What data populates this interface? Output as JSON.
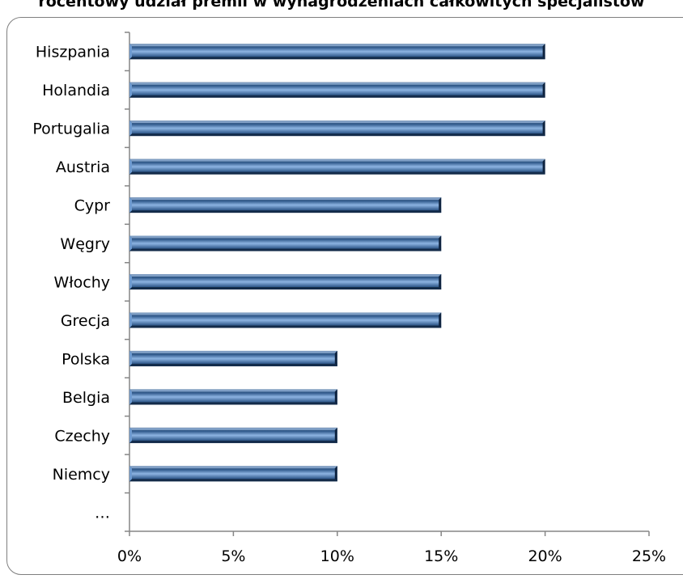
{
  "chart_data": {
    "type": "bar",
    "orientation": "horizontal",
    "title": "rocentowy udział premii w wynagrodzeniach całkowitych specjalistów",
    "categories": [
      "Hiszpania",
      "Holandia",
      "Portugalia",
      "Austria",
      "Cypr",
      "Węgry",
      "Włochy",
      "Grecja",
      "Polska",
      "Belgia",
      "Czechy",
      "Niemcy",
      "…"
    ],
    "values": [
      20,
      20,
      20,
      20,
      15,
      15,
      15,
      15,
      10,
      10,
      10,
      10,
      null
    ],
    "xlim": [
      0,
      25
    ],
    "xticks": [
      "0%",
      "5%",
      "10%",
      "15%",
      "20%",
      "25%"
    ],
    "grid": false,
    "legend": "none",
    "colors": {
      "bar_dark": "#17375e",
      "bar_mid": "#376092",
      "bar_light": "#8db4e2",
      "axis": "#868686"
    }
  }
}
